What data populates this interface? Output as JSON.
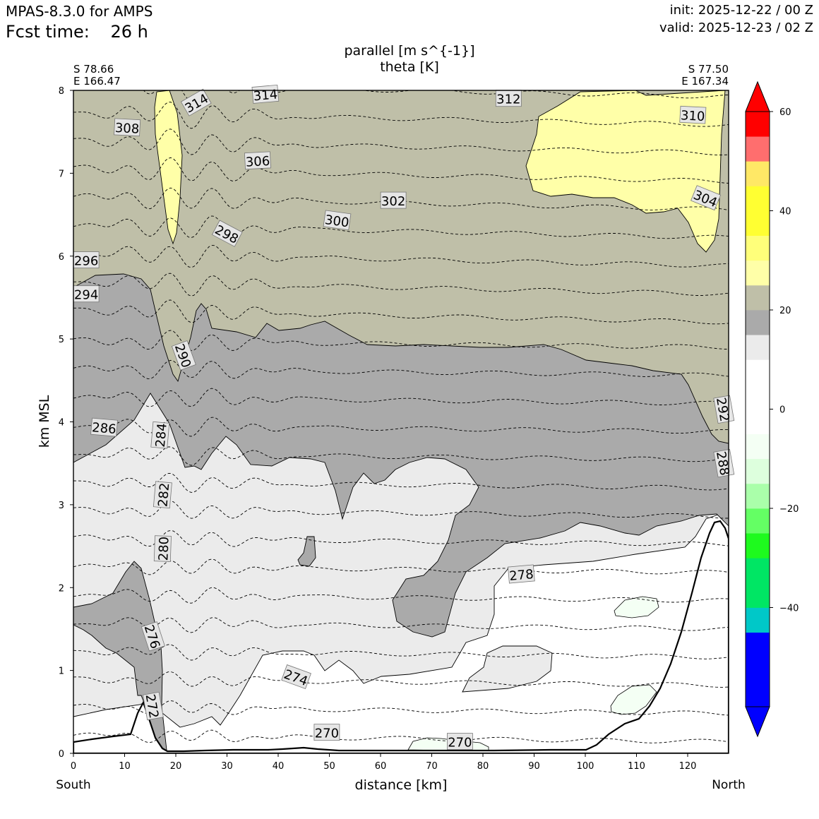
{
  "header": {
    "model": "MPAS-8.3.0 for AMPS",
    "fcst_label": "Fcst time:",
    "fcst_value": "26 h",
    "init": "init: 2025-12-22 / 00 Z",
    "valid": "valid: 2025-12-23 / 02 Z"
  },
  "chart_data": {
    "type": "cross-section contour",
    "title_line1": "parallel [m s^{-1}]",
    "title_line2": "theta [K]",
    "xlabel": "distance [km]",
    "ylabel": "km MSL",
    "xlim": [
      0,
      128
    ],
    "ylim": [
      0,
      8
    ],
    "x_ticks": [
      0,
      10,
      20,
      30,
      40,
      50,
      60,
      70,
      80,
      90,
      100,
      110,
      120
    ],
    "y_ticks": [
      0,
      1,
      2,
      3,
      4,
      5,
      6,
      7,
      8
    ],
    "endpoints": {
      "left": {
        "lat": "S 78.66",
        "lon": "E 166.47",
        "side": "South"
      },
      "right": {
        "lat": "S 77.50",
        "lon": "E 167.34",
        "side": "North"
      }
    },
    "theta_contour_labels": [
      {
        "value": "314",
        "x": 24,
        "y": 7.85,
        "rot": -30
      },
      {
        "value": "314",
        "x": 37.5,
        "y": 7.95,
        "rot": -5
      },
      {
        "value": "312",
        "x": 85,
        "y": 7.9,
        "rot": 0
      },
      {
        "value": "310",
        "x": 121,
        "y": 7.7,
        "rot": 3
      },
      {
        "value": "308",
        "x": 10.5,
        "y": 7.55,
        "rot": 3
      },
      {
        "value": "306",
        "x": 36,
        "y": 7.15,
        "rot": -3
      },
      {
        "value": "304",
        "x": 123.5,
        "y": 6.7,
        "rot": 22
      },
      {
        "value": "302",
        "x": 62.5,
        "y": 6.67,
        "rot": 0
      },
      {
        "value": "300",
        "x": 51.5,
        "y": 6.43,
        "rot": 8
      },
      {
        "value": "298",
        "x": 30,
        "y": 6.27,
        "rot": 28
      },
      {
        "value": "296",
        "x": 2.5,
        "y": 5.95,
        "rot": 0
      },
      {
        "value": "294",
        "x": 2.5,
        "y": 5.54,
        "rot": 0
      },
      {
        "value": "292",
        "x": 127,
        "y": 4.15,
        "rot": 80
      },
      {
        "value": "290",
        "x": 21.5,
        "y": 4.8,
        "rot": 70
      },
      {
        "value": "288",
        "x": 127,
        "y": 3.5,
        "rot": 80
      },
      {
        "value": "286",
        "x": 6,
        "y": 3.93,
        "rot": 5
      },
      {
        "value": "284",
        "x": 17,
        "y": 3.84,
        "rot": -85
      },
      {
        "value": "282",
        "x": 17.5,
        "y": 3.12,
        "rot": -85
      },
      {
        "value": "280",
        "x": 17.5,
        "y": 2.47,
        "rot": -88
      },
      {
        "value": "278",
        "x": 87.5,
        "y": 2.16,
        "rot": -5
      },
      {
        "value": "276",
        "x": 15.5,
        "y": 1.41,
        "rot": 72
      },
      {
        "value": "274",
        "x": 43.5,
        "y": 0.92,
        "rot": 20
      },
      {
        "value": "272",
        "x": 15.5,
        "y": 0.57,
        "rot": 80
      },
      {
        "value": "270",
        "x": 49.5,
        "y": 0.25,
        "rot": 0
      },
      {
        "value": "270",
        "x": 75.5,
        "y": 0.14,
        "rot": 0
      }
    ],
    "colorbar": {
      "label_ticks": [
        60,
        40,
        20,
        0,
        -20,
        -40
      ],
      "tick_labels": [
        "60",
        "40",
        "20",
        "0",
        "−20",
        "−40"
      ],
      "levels": [
        -60,
        -55,
        -50,
        -45,
        -40,
        -35,
        -30,
        -25,
        -20,
        -15,
        -10,
        -5,
        0,
        5,
        10,
        15,
        20,
        25,
        30,
        35,
        40,
        45,
        50,
        55,
        60
      ],
      "colors": [
        "#0000ff",
        "#0000ff",
        "#0000ff",
        "#00c8c8",
        "#00e664",
        "#00e664",
        "#1efa1e",
        "#64ff64",
        "#aaffaa",
        "#ddffdd",
        "#f4fff4",
        "#ffffff",
        "#ffffff",
        "#ffffff",
        "#ebebeb",
        "#aaaaaa",
        "#bfbfa8",
        "#ffffa8",
        "#ffff7a",
        "#ffff32",
        "#ffff32",
        "#ffe866",
        "#ff6e6e",
        "#ff0000"
      ],
      "extend": "both"
    },
    "filled_colors": {
      "white": "#ffffff",
      "light_gray": "#ebebeb",
      "gray": "#aaaaaa",
      "olive": "#bfbfa8",
      "yellow": "#ffffa8",
      "green": "#f4fff4",
      "axis": "#000000"
    }
  }
}
